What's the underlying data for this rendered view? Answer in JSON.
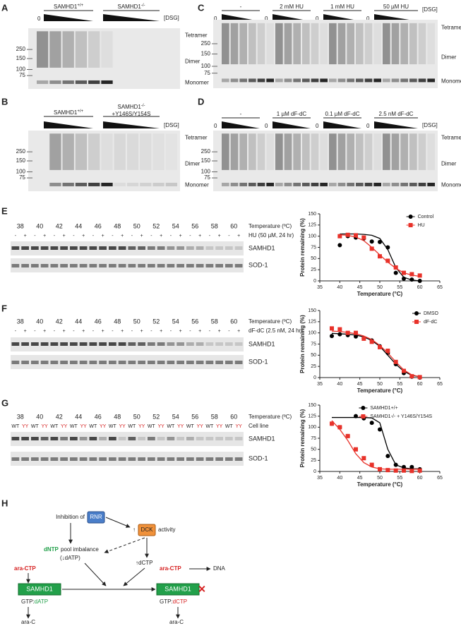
{
  "panels": {
    "A": {
      "label": "A",
      "groups": [
        {
          "base": "SAMHD1",
          "sup": "+/+"
        },
        {
          "base": "SAMHD1",
          "sup": "-/-"
        }
      ],
      "zero": "0",
      "dsg": "[DSG]",
      "markers": [
        "250",
        "150",
        "100",
        "75"
      ],
      "bands": [
        "Tetramer",
        "Dimer",
        "Monomer"
      ]
    },
    "B": {
      "label": "B",
      "groups": [
        {
          "base": "SAMHD1",
          "sup": "+/+"
        },
        {
          "base": "SAMHD1",
          "sup": "-/-",
          "line2": "+Y146S/Y154S"
        }
      ],
      "dsg": "[DSG]",
      "markers": [
        "250",
        "150",
        "100",
        "75"
      ],
      "bands": [
        "Tetramer",
        "Dimer",
        "Monomer"
      ]
    },
    "C": {
      "label": "C",
      "groups": [
        "-",
        "2 mM HU",
        "1 mM HU",
        "50 µM HU"
      ],
      "zero": "0",
      "dsg": "[DSG]",
      "markers": [
        "250",
        "150",
        "100",
        "75"
      ],
      "bands": [
        "Tetramer",
        "Dimer",
        "Monomer"
      ]
    },
    "D": {
      "label": "D",
      "groups": [
        "-",
        "1 µM dF-dC",
        "0.1 µM dF-dC",
        "2.5 nM dF-dC"
      ],
      "zero": "0",
      "dsg": "[DSG]",
      "markers": [
        "250",
        "150",
        "100",
        "75"
      ],
      "bands": [
        "Tetramer",
        "Dimer",
        "Monomer"
      ]
    }
  },
  "blots": {
    "E": {
      "label": "E",
      "temps": [
        38,
        40,
        42,
        44,
        46,
        48,
        50,
        52,
        54,
        56,
        58,
        60
      ],
      "temp_label": "Temperature (ºC)",
      "row": [
        "-",
        "+"
      ],
      "row_label": "HU (50 µM, 24 hr)",
      "proteins": [
        "SAMHD1",
        "SOD-1"
      ]
    },
    "F": {
      "label": "F",
      "temps": [
        38,
        40,
        42,
        44,
        46,
        48,
        50,
        52,
        54,
        56,
        58,
        60
      ],
      "temp_label": "Temperature (ºC)",
      "row": [
        "-",
        "+"
      ],
      "row_label": "dF-dC (2.5 nM, 24 hr)",
      "proteins": [
        "SAMHD1",
        "SOD-1"
      ]
    },
    "G": {
      "label": "G",
      "temps": [
        38,
        40,
        42,
        44,
        46,
        48,
        50,
        52,
        54,
        56,
        58,
        60
      ],
      "temp_label": "Temperature (ºC)",
      "row": [
        "WT",
        "YY"
      ],
      "row_label": "Cell line",
      "proteins": [
        "SAMHD1",
        "SOD-1"
      ]
    }
  },
  "chart_data": [
    {
      "type": "scatter",
      "xlabel": "Temperature (°C)",
      "ylabel": "Protein remaining (%)",
      "x": [
        40,
        42,
        44,
        46,
        48,
        50,
        52,
        54,
        56,
        58,
        60
      ],
      "xlim": [
        35,
        65
      ],
      "xticks": [
        35,
        40,
        45,
        50,
        55,
        60,
        65
      ],
      "ylim": [
        0,
        150
      ],
      "yticks": [
        0,
        25,
        50,
        75,
        100,
        125,
        150
      ],
      "legend": "upper right",
      "grid": false,
      "series": [
        {
          "name": "Control",
          "color": "#000000",
          "marker": "circle",
          "values": [
            80,
            100,
            97,
            95,
            88,
            87,
            75,
            18,
            5,
            3,
            0
          ],
          "fit": [
            105,
            105,
            105,
            104,
            102,
            95,
            70,
            30,
            8,
            2,
            0
          ]
        },
        {
          "name": "HU",
          "color": "#e8322a",
          "marker": "square",
          "values": [
            100,
            103,
            102,
            97,
            72,
            55,
            45,
            30,
            18,
            15,
            12
          ],
          "fit": [
            103,
            102,
            98,
            90,
            75,
            58,
            42,
            28,
            18,
            13,
            10
          ]
        }
      ]
    },
    {
      "type": "scatter",
      "xlabel": "Temperature (°C)",
      "ylabel": "Protein remaining (%)",
      "x": [
        38,
        40,
        42,
        44,
        46,
        48,
        50,
        52,
        54,
        56,
        58,
        60
      ],
      "xlim": [
        35,
        65
      ],
      "xticks": [
        35,
        40,
        45,
        50,
        55,
        60,
        65
      ],
      "ylim": [
        0,
        150
      ],
      "yticks": [
        0,
        25,
        50,
        75,
        100,
        125,
        150
      ],
      "legend": "upper right",
      "grid": false,
      "series": [
        {
          "name": "DMSO",
          "color": "#000000",
          "marker": "circle",
          "values": [
            93,
            97,
            95,
            92,
            88,
            83,
            70,
            55,
            30,
            10,
            2,
            0
          ],
          "fit": [
            99,
            98,
            97,
            95,
            91,
            83,
            70,
            50,
            30,
            14,
            5,
            2
          ]
        },
        {
          "name": "dF-dC",
          "color": "#e8322a",
          "marker": "square",
          "values": [
            110,
            108,
            100,
            100,
            87,
            80,
            68,
            60,
            35,
            15,
            3,
            1
          ],
          "fit": [
            104,
            103,
            101,
            98,
            93,
            85,
            72,
            55,
            35,
            17,
            6,
            2
          ]
        }
      ]
    },
    {
      "type": "scatter",
      "xlabel": "Temperature (°C)",
      "ylabel": "Protein remaining (%)",
      "x": [
        38,
        40,
        42,
        44,
        46,
        48,
        50,
        52,
        54,
        56,
        58,
        60
      ],
      "xlim": [
        35,
        65
      ],
      "xticks": [
        35,
        40,
        45,
        50,
        55,
        60,
        65
      ],
      "ylim": [
        0,
        150
      ],
      "yticks": [
        0,
        25,
        50,
        75,
        100,
        125,
        150
      ],
      "legend": "upper right",
      "grid": false,
      "series": [
        {
          "name": "SAMHD1+/+",
          "color": "#000000",
          "marker": "circle",
          "values": [
            108,
            100,
            80,
            125,
            120,
            110,
            95,
            35,
            15,
            10,
            10,
            5
          ],
          "fit": [
            122,
            122,
            122,
            122,
            122,
            121,
            110,
            50,
            15,
            8,
            6,
            6
          ]
        },
        {
          "name": "SAMHD1-/- + Y146S/Y154S",
          "color": "#e8322a",
          "marker": "square",
          "values": [
            108,
            100,
            80,
            50,
            30,
            15,
            5,
            3,
            2,
            2,
            1,
            2
          ],
          "fit": [
            115,
            95,
            70,
            40,
            20,
            10,
            6,
            5,
            5,
            5,
            5,
            5
          ]
        }
      ]
    }
  ],
  "diagram": {
    "label": "H",
    "inhibition": "Inhibition of",
    "rnr": "RNR",
    "up": "↑",
    "dck": "DCK",
    "activity": "activity",
    "dntp": "dNTP",
    "pool": "pool imbalance",
    "datp_note": "(↓dATP)",
    "dctp_up": "↑dCTP",
    "aractp": "ara-CTP",
    "dna": "DNA",
    "samhd1": "SAMHD1",
    "gtp": "GTP:",
    "datp": "dATP",
    "dctp": "dCTP",
    "arac": "ara-C",
    "x": "✕"
  }
}
